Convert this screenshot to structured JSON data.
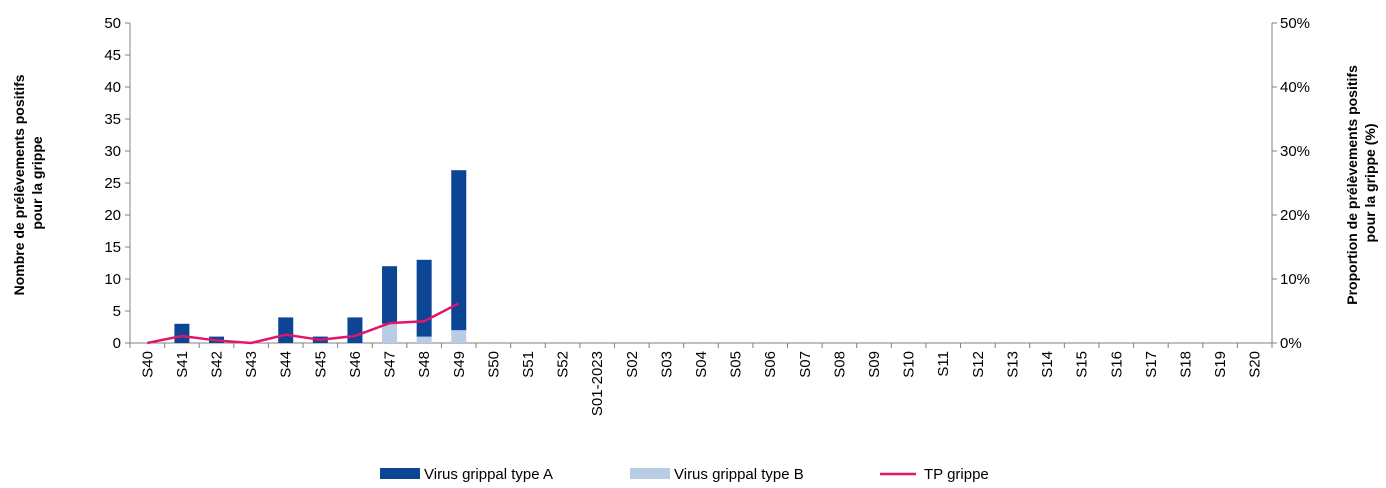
{
  "chart_data": {
    "type": "bar",
    "stacked": true,
    "categories": [
      "S40",
      "S41",
      "S42",
      "S43",
      "S44",
      "S45",
      "S46",
      "S47",
      "S48",
      "S49",
      "S50",
      "S51",
      "S52",
      "S01-2023",
      "S02",
      "S03",
      "S04",
      "S05",
      "S06",
      "S07",
      "S08",
      "S09",
      "S10",
      "S11",
      "S12",
      "S13",
      "S14",
      "S15",
      "S16",
      "S17",
      "S18",
      "S19",
      "S20"
    ],
    "series": [
      {
        "name": "Virus grippal type A",
        "kind": "bar",
        "axis": "left",
        "color": "#0b4594",
        "values": [
          0,
          3,
          1,
          0,
          4,
          1,
          4,
          9,
          12,
          25,
          null,
          null,
          null,
          null,
          null,
          null,
          null,
          null,
          null,
          null,
          null,
          null,
          null,
          null,
          null,
          null,
          null,
          null,
          null,
          null,
          null,
          null,
          null
        ]
      },
      {
        "name": "Virus grippal type B",
        "kind": "bar",
        "axis": "left",
        "color": "#b8cce4",
        "values": [
          0,
          0,
          0,
          0,
          0,
          0,
          0,
          3,
          1,
          2,
          null,
          null,
          null,
          null,
          null,
          null,
          null,
          null,
          null,
          null,
          null,
          null,
          null,
          null,
          null,
          null,
          null,
          null,
          null,
          null,
          null,
          null,
          null
        ]
      },
      {
        "name": "TP grippe",
        "kind": "line",
        "axis": "right",
        "color": "#e0156b",
        "values": [
          0,
          1.1,
          0.4,
          0,
          1.3,
          0.5,
          1.1,
          3.1,
          3.4,
          6.2,
          null,
          null,
          null,
          null,
          null,
          null,
          null,
          null,
          null,
          null,
          null,
          null,
          null,
          null,
          null,
          null,
          null,
          null,
          null,
          null,
          null,
          null,
          null
        ]
      }
    ],
    "ylabel": "Nombre de prélèvements positifs pour la grippe",
    "ylabel_lines": [
      "Nombre de prélèvements positifs",
      "pour la grippe"
    ],
    "ylim": [
      0,
      50
    ],
    "yticks": [
      "0",
      "5",
      "10",
      "15",
      "20",
      "25",
      "30",
      "35",
      "40",
      "45",
      "50"
    ],
    "y2label": "Proportion de prélèvements positifs pour la grippe (%)",
    "y2label_lines": [
      "Proportion de prélèvements positifs",
      "pour la grippe (%)"
    ],
    "y2lim": [
      0,
      50
    ],
    "y2ticks": [
      "0%",
      "10%",
      "20%",
      "30%",
      "40%",
      "50%"
    ],
    "legend_position": "bottom",
    "grid": false
  }
}
